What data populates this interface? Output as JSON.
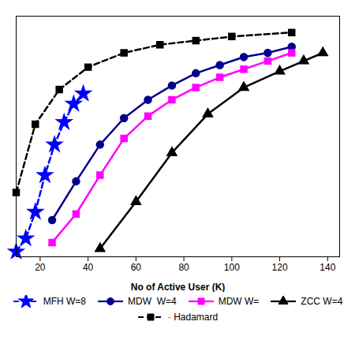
{
  "chart_data": {
    "type": "line",
    "xlabel": "No of Active User (K)",
    "xlim": [
      10,
      145
    ],
    "ylim": [
      -0.13,
      1.05
    ],
    "xticks": [
      20,
      40,
      60,
      80,
      100,
      120,
      140
    ],
    "tick_labels": "x",
    "grid": false,
    "legend": "bottom",
    "series": [
      {
        "name": "MFH W=8",
        "color": "#0000FF",
        "marker": "star",
        "line_style": "dashed",
        "x": [
          10,
          14,
          18,
          22,
          26,
          30,
          34,
          38
        ],
        "values": [
          -0.105,
          -0.04,
          0.09,
          0.27,
          0.42,
          0.53,
          0.62,
          0.67
        ]
      },
      {
        "name": "MDW  W=4",
        "color": "#00008B",
        "marker": "circle",
        "line_style": "solid",
        "x": [
          25,
          35,
          45,
          55,
          65,
          75,
          85,
          95,
          105,
          115,
          125
        ],
        "values": [
          0.05,
          0.24,
          0.42,
          0.55,
          0.64,
          0.71,
          0.77,
          0.81,
          0.85,
          0.87,
          0.9
        ]
      },
      {
        "name": "MDW W=",
        "color": "#FF00FF",
        "marker": "square",
        "line_style": "solid",
        "x": [
          25,
          35,
          45,
          55,
          65,
          75,
          85,
          95,
          105,
          115,
          125
        ],
        "values": [
          -0.06,
          0.08,
          0.27,
          0.45,
          0.56,
          0.64,
          0.7,
          0.75,
          0.79,
          0.83,
          0.87
        ]
      },
      {
        "name": "ZCC W=4",
        "color": "#000000",
        "marker": "triangle",
        "line_style": "solid",
        "x": [
          45,
          60,
          75,
          90,
          105,
          120,
          130,
          138
        ],
        "values": [
          -0.09,
          0.14,
          0.38,
          0.57,
          0.7,
          0.78,
          0.83,
          0.87
        ]
      },
      {
        "name": "· Hadamard",
        "color": "#000000",
        "marker": "square",
        "line_style": "dashed",
        "x": [
          10,
          18,
          28,
          40,
          55,
          70,
          85,
          100,
          125
        ],
        "values": [
          0.185,
          0.52,
          0.69,
          0.8,
          0.87,
          0.91,
          0.93,
          0.95,
          0.97
        ]
      }
    ]
  }
}
